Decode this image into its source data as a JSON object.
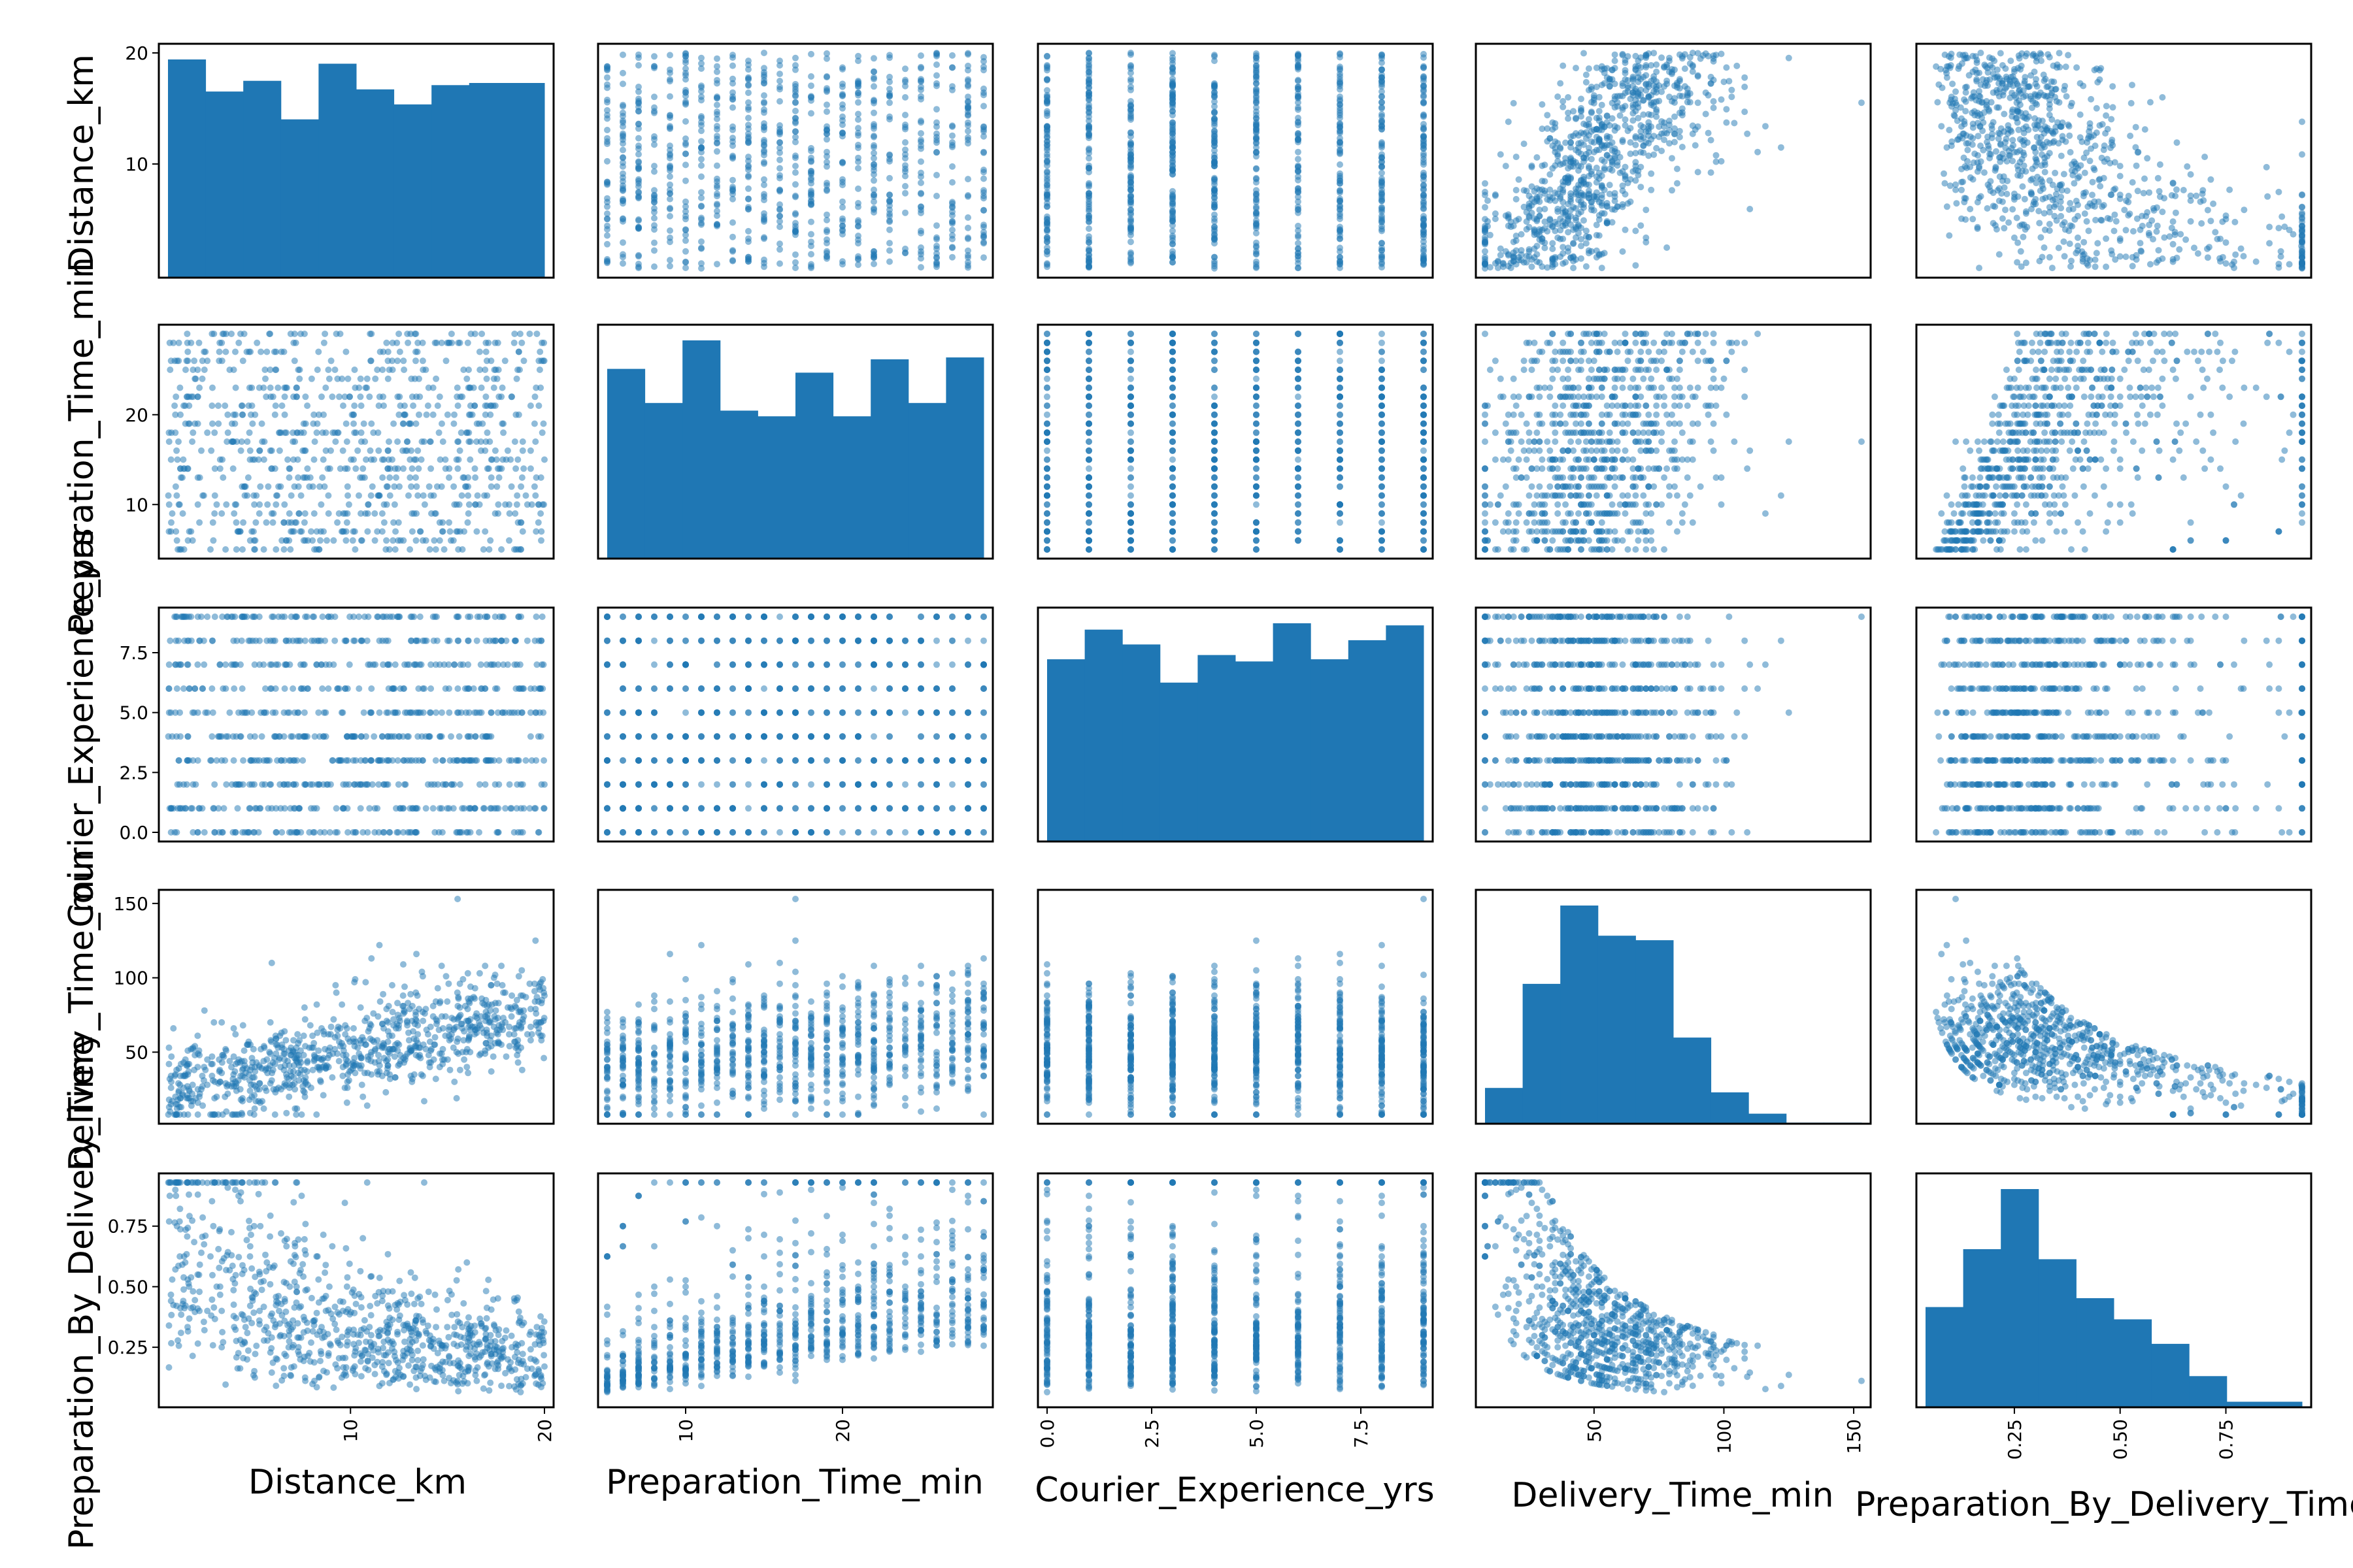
{
  "chart_data": {
    "type": "scatter",
    "title": "",
    "variables": [
      "Distance_km",
      "Preparation_Time_min",
      "Courier_Experience_yrs",
      "Delivery_Time_min",
      "Preparation_By_Delivery_Time"
    ],
    "point_color": "#1f77b4",
    "diagonal": "histogram",
    "n_points_approx": 880,
    "ranges": [
      [
        0.59,
        20.0
      ],
      [
        5,
        29
      ],
      [
        0,
        9
      ],
      [
        8,
        153
      ],
      [
        0.04,
        0.93
      ]
    ],
    "ticks": [
      [
        10,
        20
      ],
      [
        10,
        20
      ],
      [
        0.0,
        2.5,
        5.0,
        7.5
      ],
      [
        50,
        100,
        150
      ],
      [
        0.25,
        0.5,
        0.75
      ]
    ],
    "tick_labels": [
      [
        "10",
        "20"
      ],
      [
        "10",
        "20"
      ],
      [
        "0.0",
        "2.5",
        "5.0",
        "7.5"
      ],
      [
        "50",
        "100",
        "150"
      ],
      [
        "0.25",
        "0.50",
        "0.75"
      ]
    ],
    "histograms": [
      {
        "variable": "Distance_km",
        "bins": 10,
        "counts": [
          102,
          87,
          92,
          74,
          100,
          88,
          81,
          90,
          91,
          91
        ]
      },
      {
        "variable": "Preparation_Time_min",
        "bins": 10,
        "counts": [
          100,
          82,
          115,
          78,
          75,
          98,
          75,
          105,
          82,
          106
        ]
      },
      {
        "variable": "Courier_Experience_yrs",
        "bins": 10,
        "counts": [
          86,
          100,
          93,
          75,
          88,
          85,
          103,
          86,
          95,
          102
        ]
      },
      {
        "variable": "Delivery_Time_min",
        "bins": 10,
        "counts": [
          32,
          125,
          195,
          168,
          164,
          77,
          28,
          9,
          1,
          1
        ]
      },
      {
        "variable": "Preparation_By_Delivery_Time",
        "bins": 10,
        "counts": [
          90,
          142,
          196,
          133,
          98,
          79,
          57,
          28,
          5,
          5
        ]
      }
    ],
    "scatter_trends": {
      "Delivery_Time_min_vs_Distance_km": {
        "relation": "increasing",
        "intercept": 20,
        "slope": 3.0
      },
      "Delivery_Time_min_vs_Preparation_Time_min": {
        "relation": "increasing",
        "slope": 1.0
      },
      "Delivery_Time_min_vs_Courier_Experience_yrs": {
        "relation": "slightly decreasing",
        "slope": -0.6
      },
      "Preparation_By_Delivery_Time": "Preparation_Time_min / Delivery_Time_min"
    }
  }
}
